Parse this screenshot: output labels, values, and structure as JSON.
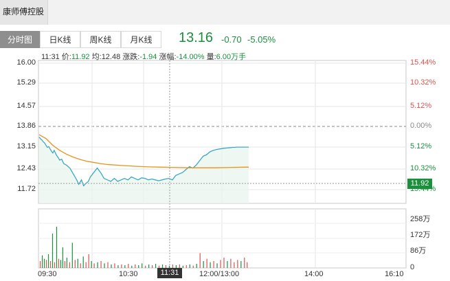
{
  "window": {
    "title": "康师傅控股"
  },
  "tabs": [
    {
      "label": "分时图",
      "active": true
    },
    {
      "label": "日K线",
      "active": false
    },
    {
      "label": "周K线",
      "active": false
    },
    {
      "label": "月K线",
      "active": false
    }
  ],
  "quote": {
    "price": "13.16",
    "change": "-0.70",
    "change_pct": "-5.05%",
    "color": "#1a8f3c"
  },
  "info": {
    "time": "11:31",
    "price_label": "价:",
    "price": "11.92",
    "avg_label": "均:",
    "avg": "12.48",
    "chg_label": "涨跌:",
    "chg": "-1.94",
    "pct_label": "涨幅:",
    "pct": "-14.00%",
    "vol_label": "量:",
    "vol": "6.00万手"
  },
  "cursor": {
    "price": "11.92",
    "time": "11:31"
  },
  "colors": {
    "up": "#d9534f",
    "down": "#1a8f3c",
    "price_line": "#3aa8c1",
    "avg_line": "#e8921a"
  },
  "chart_data": {
    "type": "line",
    "title": "",
    "prev_close": 13.86,
    "ylim": [
      11.72,
      16.0
    ],
    "y_ticks_left": [
      "16.00",
      "15.29",
      "14.57",
      "13.86",
      "13.15",
      "12.43",
      "11.72"
    ],
    "y_ticks_right": [
      {
        "text": "15.44%",
        "dir": "up"
      },
      {
        "text": "10.32%",
        "dir": "up"
      },
      {
        "text": "5.12%",
        "dir": "up"
      },
      {
        "text": "0.00%",
        "dir": "flat"
      },
      {
        "text": "5.12%",
        "dir": "down"
      },
      {
        "text": "10.32%",
        "dir": "down"
      },
      {
        "text": "15.44%",
        "dir": "down"
      }
    ],
    "x_ticks": [
      "09:30",
      "10:30",
      "12:00/13:00",
      "14:00",
      "16:10"
    ],
    "series": [
      {
        "name": "价",
        "x": [
          0,
          2,
          4,
          6,
          8,
          10,
          12,
          14,
          16,
          18,
          20,
          22,
          25,
          28,
          30,
          33,
          36,
          40,
          45,
          50,
          55,
          58,
          62,
          65,
          68,
          72,
          75,
          80,
          85,
          90,
          95,
          100,
          105,
          110,
          115,
          120,
          125,
          130,
          135,
          140,
          145,
          150,
          155,
          160,
          165,
          170,
          175,
          180,
          185,
          190,
          195,
          200,
          205,
          210,
          215,
          220,
          225,
          230,
          235,
          240,
          245,
          250,
          255,
          260,
          265,
          270,
          275,
          280,
          283,
          286,
          289,
          292,
          295,
          298,
          301,
          304,
          307
        ],
        "values": [
          13.5,
          13.44,
          13.4,
          13.34,
          13.3,
          13.22,
          13.15,
          13.18,
          13.1,
          13.02,
          12.96,
          13.05,
          12.9,
          12.8,
          12.72,
          12.75,
          12.6,
          12.55,
          12.45,
          12.25,
          12.05,
          11.9,
          12.05,
          11.85,
          11.92,
          12.0,
          12.15,
          12.3,
          12.45,
          12.3,
          12.1,
          12.05,
          12.0,
          12.1,
          12.0,
          12.05,
          12.1,
          12.05,
          12.15,
          12.1,
          12.05,
          12.12,
          12.1,
          12.05,
          12.08,
          12.05,
          12.02,
          12.05,
          12.08,
          12.1,
          12.05,
          12.2,
          12.25,
          12.3,
          12.4,
          12.5,
          12.45,
          12.55,
          12.7,
          12.85,
          12.9,
          13.0,
          13.05,
          13.08,
          13.1,
          13.12,
          13.13,
          13.14,
          13.15,
          13.15,
          13.16,
          13.16,
          13.16,
          13.16,
          13.16,
          13.16,
          13.16
        ]
      },
      {
        "name": "均",
        "x": [
          0,
          10,
          20,
          30,
          40,
          50,
          60,
          70,
          80,
          90,
          100,
          120,
          140,
          160,
          180,
          200,
          220,
          240,
          260,
          280,
          300,
          307
        ],
        "values": [
          13.58,
          13.45,
          13.22,
          13.05,
          12.92,
          12.82,
          12.74,
          12.68,
          12.64,
          12.6,
          12.57,
          12.54,
          12.51,
          12.49,
          12.48,
          12.47,
          12.46,
          12.46,
          12.46,
          12.47,
          12.48,
          12.48
        ]
      }
    ],
    "volume": {
      "ylim": [
        0,
        258
      ],
      "y_ticks": [
        "258万",
        "172万",
        "86万",
        "0"
      ],
      "bars": [
        {
          "x": 1,
          "v": 30,
          "dir": "up"
        },
        {
          "x": 4,
          "v": 55,
          "dir": "down"
        },
        {
          "x": 7,
          "v": 40,
          "dir": "down"
        },
        {
          "x": 10,
          "v": 35,
          "dir": "up"
        },
        {
          "x": 13,
          "v": 60,
          "dir": "down"
        },
        {
          "x": 16,
          "v": 30,
          "dir": "up"
        },
        {
          "x": 19,
          "v": 150,
          "dir": "down"
        },
        {
          "x": 22,
          "v": 25,
          "dir": "up"
        },
        {
          "x": 25,
          "v": 180,
          "dir": "down"
        },
        {
          "x": 28,
          "v": 40,
          "dir": "up"
        },
        {
          "x": 31,
          "v": 35,
          "dir": "down"
        },
        {
          "x": 34,
          "v": 90,
          "dir": "down"
        },
        {
          "x": 37,
          "v": 30,
          "dir": "up"
        },
        {
          "x": 40,
          "v": 45,
          "dir": "down"
        },
        {
          "x": 44,
          "v": 25,
          "dir": "up"
        },
        {
          "x": 48,
          "v": 110,
          "dir": "down"
        },
        {
          "x": 52,
          "v": 35,
          "dir": "up"
        },
        {
          "x": 56,
          "v": 40,
          "dir": "down"
        },
        {
          "x": 60,
          "v": 20,
          "dir": "up"
        },
        {
          "x": 64,
          "v": 50,
          "dir": "down"
        },
        {
          "x": 68,
          "v": 25,
          "dir": "up"
        },
        {
          "x": 72,
          "v": 60,
          "dir": "up"
        },
        {
          "x": 76,
          "v": 30,
          "dir": "down"
        },
        {
          "x": 80,
          "v": 20,
          "dir": "up"
        },
        {
          "x": 85,
          "v": 25,
          "dir": "down"
        },
        {
          "x": 90,
          "v": 30,
          "dir": "up"
        },
        {
          "x": 95,
          "v": 20,
          "dir": "down"
        },
        {
          "x": 100,
          "v": 25,
          "dir": "up"
        },
        {
          "x": 105,
          "v": 15,
          "dir": "down"
        },
        {
          "x": 110,
          "v": 20,
          "dir": "up"
        },
        {
          "x": 115,
          "v": 12,
          "dir": "down"
        },
        {
          "x": 120,
          "v": 15,
          "dir": "up"
        },
        {
          "x": 125,
          "v": 12,
          "dir": "down"
        },
        {
          "x": 130,
          "v": 18,
          "dir": "up"
        },
        {
          "x": 135,
          "v": 10,
          "dir": "down"
        },
        {
          "x": 140,
          "v": 15,
          "dir": "up"
        },
        {
          "x": 145,
          "v": 12,
          "dir": "down"
        },
        {
          "x": 150,
          "v": 20,
          "dir": "down"
        },
        {
          "x": 155,
          "v": 10,
          "dir": "up"
        },
        {
          "x": 160,
          "v": 15,
          "dir": "down"
        },
        {
          "x": 165,
          "v": 12,
          "dir": "up"
        },
        {
          "x": 170,
          "v": 18,
          "dir": "down"
        },
        {
          "x": 175,
          "v": 10,
          "dir": "up"
        },
        {
          "x": 180,
          "v": 15,
          "dir": "down"
        },
        {
          "x": 185,
          "v": 12,
          "dir": "up"
        },
        {
          "x": 190,
          "v": 10,
          "dir": "down"
        },
        {
          "x": 195,
          "v": 15,
          "dir": "up"
        },
        {
          "x": 200,
          "v": 12,
          "dir": "down"
        },
        {
          "x": 205,
          "v": 15,
          "dir": "up"
        },
        {
          "x": 210,
          "v": 10,
          "dir": "down"
        },
        {
          "x": 215,
          "v": 12,
          "dir": "up"
        },
        {
          "x": 220,
          "v": 15,
          "dir": "down"
        },
        {
          "x": 225,
          "v": 10,
          "dir": "up"
        },
        {
          "x": 230,
          "v": 18,
          "dir": "down"
        },
        {
          "x": 235,
          "v": 65,
          "dir": "up"
        },
        {
          "x": 240,
          "v": 30,
          "dir": "down"
        },
        {
          "x": 245,
          "v": 40,
          "dir": "up"
        },
        {
          "x": 250,
          "v": 25,
          "dir": "down"
        },
        {
          "x": 255,
          "v": 30,
          "dir": "up"
        },
        {
          "x": 260,
          "v": 20,
          "dir": "down"
        },
        {
          "x": 265,
          "v": 35,
          "dir": "up"
        },
        {
          "x": 270,
          "v": 45,
          "dir": "up"
        },
        {
          "x": 275,
          "v": 30,
          "dir": "down"
        },
        {
          "x": 280,
          "v": 40,
          "dir": "up"
        },
        {
          "x": 285,
          "v": 25,
          "dir": "up"
        },
        {
          "x": 290,
          "v": 35,
          "dir": "up"
        },
        {
          "x": 295,
          "v": 30,
          "dir": "down"
        },
        {
          "x": 300,
          "v": 45,
          "dir": "up"
        },
        {
          "x": 304,
          "v": 25,
          "dir": "up"
        }
      ]
    }
  }
}
